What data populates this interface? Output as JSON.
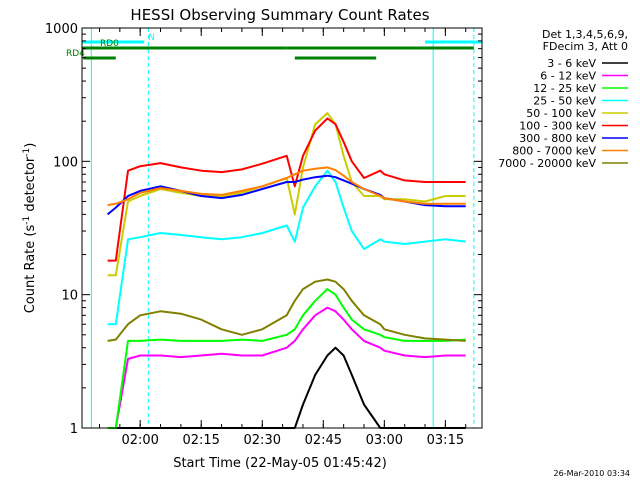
{
  "chart_data": {
    "type": "line",
    "title": "HESSI Observing Summary Count Rates",
    "xlabel": "Start Time (22-May-05 01:45:42)",
    "ylabel_prefix": "Count Rate (s",
    "ylabel_sup1": "-1",
    "ylabel_mid": " detector",
    "ylabel_sup2": "-1",
    "ylabel_suffix": ")",
    "y_scale": "log",
    "ylim": [
      1,
      1000
    ],
    "xlim": [
      "01:45:42",
      "03:24:00"
    ],
    "x_ticks": [
      "02:00",
      "02:15",
      "02:30",
      "02:45",
      "03:00",
      "03:15"
    ],
    "y_ticks": [
      "1",
      "10",
      "100",
      "1000"
    ],
    "grid": false,
    "legend_placement": "right",
    "legend_header": [
      "Det 1,3,4,5,6,9,",
      "FDecim 3, Att 0"
    ],
    "timestamp": "26-Mar-2010 03:34",
    "flags": [
      {
        "label": "N",
        "color": "#00ffff",
        "segments": [
          [
            "01:45:42",
            "02:01:00"
          ],
          [
            "03:10:00",
            "03:24:00"
          ]
        ]
      },
      {
        "label": "RD0",
        "color": "#008000",
        "segments": [
          [
            "01:45:42",
            "02:36:00"
          ],
          [
            "02:36:00",
            "03:22:00"
          ]
        ]
      },
      {
        "label": "RD4",
        "color": "#008000",
        "segments": [
          [
            "01:46:00",
            "01:54:00"
          ],
          [
            "02:38:00",
            "02:58:00"
          ]
        ]
      }
    ],
    "night_markers": [
      {
        "time": "01:48:00",
        "style": "solid",
        "color": "#00ffff"
      },
      {
        "time": "02:02:00",
        "style": "dashed",
        "color": "#00ffff"
      },
      {
        "time": "03:12:00",
        "style": "solid",
        "color": "#00ffff"
      },
      {
        "time": "03:22:00",
        "style": "dashed",
        "color": "#00ffff"
      }
    ],
    "times": [
      "01:52",
      "01:54",
      "01:57",
      "02:00",
      "02:05",
      "02:10",
      "02:15",
      "02:20",
      "02:25",
      "02:30",
      "02:36",
      "02:38",
      "02:40",
      "02:43",
      "02:46",
      "02:48",
      "02:50",
      "02:52",
      "02:55",
      "02:59",
      "03:00",
      "03:05",
      "03:10",
      "03:15",
      "03:20"
    ],
    "series": [
      {
        "name": "3 - 6 keV",
        "color": "#000000",
        "values": [
          1,
          1,
          1,
          1,
          1,
          1,
          1,
          1,
          1,
          1,
          1,
          1,
          1.5,
          2.5,
          3.5,
          4,
          3.5,
          2.5,
          1.5,
          1,
          1,
          1,
          1,
          1,
          1
        ]
      },
      {
        "name": "6 - 12 keV",
        "color": "#ff00ff",
        "values": [
          1,
          1,
          3.3,
          3.5,
          3.5,
          3.4,
          3.5,
          3.6,
          3.5,
          3.5,
          4,
          4.5,
          5.5,
          7,
          8,
          7.5,
          6.5,
          5.5,
          4.5,
          4,
          3.8,
          3.5,
          3.4,
          3.5,
          3.5
        ]
      },
      {
        "name": "12 - 25 keV",
        "color": "#00ff00",
        "values": [
          1,
          1,
          4.5,
          4.5,
          4.6,
          4.5,
          4.5,
          4.5,
          4.6,
          4.5,
          5,
          5.5,
          7,
          9,
          11,
          10,
          8,
          6.5,
          5.5,
          5,
          4.8,
          4.5,
          4.5,
          4.5,
          4.6
        ]
      },
      {
        "name": "25 - 50 keV",
        "color": "#00ffff",
        "values": [
          6,
          6,
          26,
          27,
          29,
          28,
          27,
          26,
          27,
          29,
          33,
          25,
          45,
          65,
          85,
          70,
          45,
          30,
          22,
          26,
          25,
          24,
          25,
          26,
          25
        ]
      },
      {
        "name": "50 - 100 keV",
        "color": "#cccc00",
        "values": [
          14,
          14,
          50,
          55,
          62,
          58,
          55,
          55,
          58,
          65,
          75,
          40,
          90,
          190,
          230,
          190,
          110,
          70,
          55,
          55,
          52,
          52,
          50,
          55,
          55
        ]
      },
      {
        "name": "100 - 300 keV",
        "color": "#ff0000",
        "values": [
          18,
          18,
          85,
          92,
          97,
          90,
          85,
          83,
          87,
          96,
          110,
          65,
          110,
          170,
          210,
          190,
          140,
          100,
          75,
          85,
          80,
          72,
          70,
          70,
          70
        ]
      },
      {
        "name": "300 - 800 keV",
        "color": "#0000ff",
        "values": [
          40,
          45,
          55,
          60,
          65,
          60,
          55,
          53,
          56,
          62,
          70,
          70,
          73,
          76,
          78,
          76,
          72,
          68,
          62,
          56,
          53,
          50,
          47,
          46,
          46
        ]
      },
      {
        "name": "800 - 7000 keV",
        "color": "#ff8000",
        "values": [
          47,
          48,
          52,
          58,
          63,
          60,
          57,
          56,
          60,
          65,
          75,
          80,
          85,
          88,
          90,
          86,
          78,
          70,
          62,
          55,
          53,
          50,
          48,
          48,
          48
        ]
      },
      {
        "name": "7000 - 20000 keV",
        "color": "#808000",
        "values": [
          4.5,
          4.6,
          6,
          7,
          7.5,
          7.2,
          6.5,
          5.5,
          5,
          5.5,
          7,
          9,
          11,
          12.5,
          13,
          12.5,
          11,
          9,
          7,
          6,
          5.5,
          5,
          4.7,
          4.6,
          4.5
        ]
      }
    ]
  }
}
